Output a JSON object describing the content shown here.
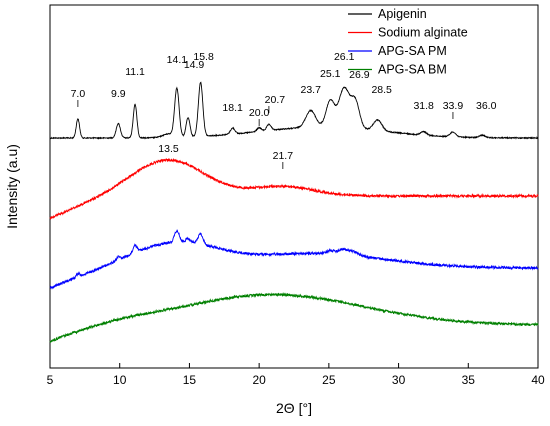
{
  "chart_data": {
    "type": "line",
    "xlabel": "2Θ [°]",
    "ylabel": "Intensity (a.u)",
    "xlim": [
      5,
      40
    ],
    "xticks": [
      5,
      10,
      15,
      20,
      25,
      30,
      35,
      40
    ],
    "xtick_labels": [
      "5",
      "10",
      "15",
      "20",
      "25",
      "30",
      "35",
      "40"
    ],
    "yticks": false,
    "grid": false,
    "legend_position": "top-right",
    "series": [
      {
        "name": "Apigenin",
        "color": "#000000",
        "baseline": 0.0,
        "peaks": [
          {
            "x": 7.0,
            "h": 0.16,
            "w": 0.12
          },
          {
            "x": 9.9,
            "h": 0.12,
            "w": 0.15
          },
          {
            "x": 11.1,
            "h": 0.28,
            "w": 0.13
          },
          {
            "x": 13.5,
            "h": 0.03,
            "w": 0.4
          },
          {
            "x": 14.1,
            "h": 0.4,
            "w": 0.16
          },
          {
            "x": 14.9,
            "h": 0.16,
            "w": 0.14
          },
          {
            "x": 15.8,
            "h": 0.45,
            "w": 0.16
          },
          {
            "x": 18.1,
            "h": 0.05,
            "w": 0.16
          },
          {
            "x": 20.0,
            "h": 0.03,
            "w": 0.16
          },
          {
            "x": 20.7,
            "h": 0.05,
            "w": 0.16
          },
          {
            "x": 23.7,
            "h": 0.14,
            "w": 0.35
          },
          {
            "x": 25.1,
            "h": 0.22,
            "w": 0.3
          },
          {
            "x": 26.1,
            "h": 0.33,
            "w": 0.38
          },
          {
            "x": 26.9,
            "h": 0.22,
            "w": 0.3
          },
          {
            "x": 28.5,
            "h": 0.09,
            "w": 0.3
          },
          {
            "x": 31.8,
            "h": 0.03,
            "w": 0.2
          },
          {
            "x": 33.9,
            "h": 0.04,
            "w": 0.2
          },
          {
            "x": 36.0,
            "h": 0.02,
            "w": 0.2
          }
        ],
        "hump": {
          "x": 24.5,
          "h": 0.09,
          "w": 4.5
        }
      },
      {
        "name": "Sodium alginate",
        "color": "#ff0000",
        "baseline": 0.0,
        "peaks": [],
        "hump": {
          "x": 13.5,
          "h": 0.45,
          "w": 2.6
        },
        "hump2": {
          "x": 21.7,
          "h": 0.12,
          "w": 2.2
        }
      },
      {
        "name": "APG-SA PM",
        "color": "#0000ff",
        "baseline": 0.0,
        "peaks": [
          {
            "x": 7.0,
            "h": 0.04,
            "w": 0.12
          },
          {
            "x": 9.9,
            "h": 0.04,
            "w": 0.15
          },
          {
            "x": 11.1,
            "h": 0.09,
            "w": 0.15
          },
          {
            "x": 14.1,
            "h": 0.14,
            "w": 0.17
          },
          {
            "x": 14.9,
            "h": 0.05,
            "w": 0.15
          },
          {
            "x": 15.8,
            "h": 0.13,
            "w": 0.18
          },
          {
            "x": 25.1,
            "h": 0.04,
            "w": 0.3
          },
          {
            "x": 26.1,
            "h": 0.07,
            "w": 0.4
          },
          {
            "x": 26.9,
            "h": 0.04,
            "w": 0.3
          }
        ],
        "hump": {
          "x": 14.0,
          "h": 0.3,
          "w": 3.0
        },
        "hump2": {
          "x": 24.0,
          "h": 0.18,
          "w": 5.0
        }
      },
      {
        "name": "APG-SA BM",
        "color": "#008000",
        "baseline": 0.0,
        "peaks": [],
        "hump": {
          "x": 21.0,
          "h": 0.38,
          "w": 6.5
        }
      }
    ],
    "peak_labels": [
      {
        "text": "7.0",
        "x": 7.0
      },
      {
        "text": "9.9",
        "x": 9.9
      },
      {
        "text": "11.1",
        "x": 11.1
      },
      {
        "text": "14.1",
        "x": 14.1
      },
      {
        "text": "14.9",
        "x": 14.9
      },
      {
        "text": "15.8",
        "x": 15.8
      },
      {
        "text": "18.1",
        "x": 18.1
      },
      {
        "text": "20.0",
        "x": 20.0
      },
      {
        "text": "20.7",
        "x": 20.7
      },
      {
        "text": "23.7",
        "x": 23.7
      },
      {
        "text": "25.1",
        "x": 25.1
      },
      {
        "text": "26.1",
        "x": 26.1
      },
      {
        "text": "26.9",
        "x": 26.9
      },
      {
        "text": "28.5",
        "x": 28.5
      },
      {
        "text": "31.8",
        "x": 31.8
      },
      {
        "text": "33.9",
        "x": 33.9
      },
      {
        "text": "36.0",
        "x": 36.0
      },
      {
        "text": "13.5",
        "x": 13.5
      },
      {
        "text": "21.7",
        "x": 21.7
      }
    ]
  }
}
